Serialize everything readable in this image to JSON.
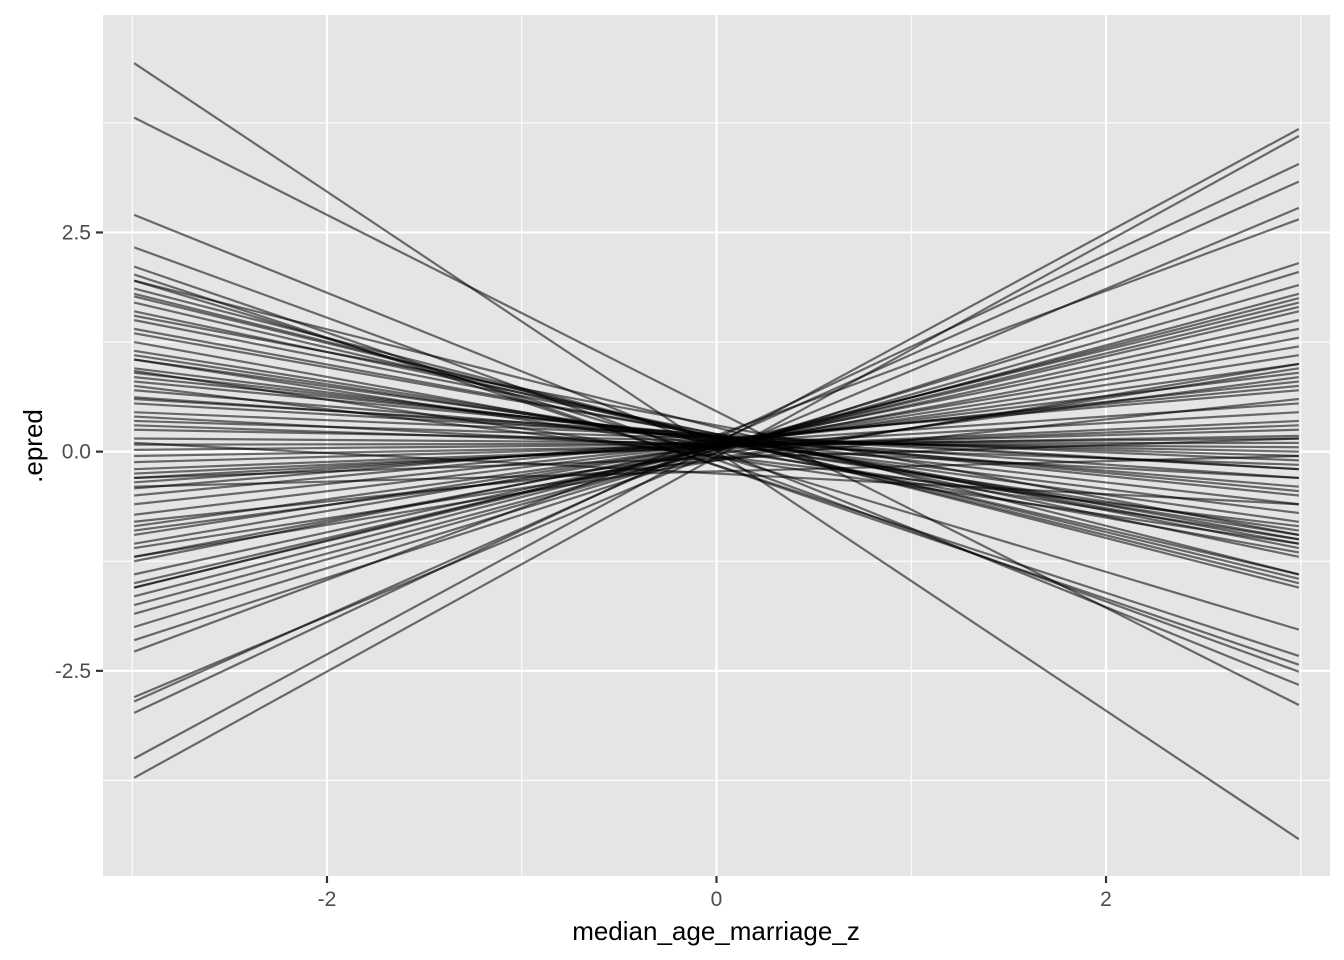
{
  "chart_data": {
    "type": "line",
    "title": "",
    "xlabel": "median_age_marriage_z",
    "ylabel": ".epred",
    "xlim": [
      -3.15,
      3.15
    ],
    "ylim": [
      -4.84,
      4.98
    ],
    "x_ticks": [
      -2,
      0,
      2
    ],
    "x_tick_labels": [
      "-2",
      "0",
      "2"
    ],
    "y_ticks": [
      -2.5,
      0.0,
      2.5
    ],
    "y_tick_labels": [
      "-2.5",
      "0.0",
      "2.5"
    ],
    "grid": true,
    "legend": "none",
    "line_color": "#000000",
    "line_alpha": 0.55,
    "panel_background": "#e5e5e5",
    "grid_color": "#ffffff",
    "x_range": [
      -2.99,
      2.99
    ],
    "series": [
      {
        "y_start": 4.43,
        "y_end": -4.42
      },
      {
        "y_start": 3.81,
        "y_end": -2.89
      },
      {
        "y_start": 2.7,
        "y_end": -2.66
      },
      {
        "y_start": 2.33,
        "y_end": -2.51
      },
      {
        "y_start": 2.11,
        "y_end": -2.43
      },
      {
        "y_start": 2.02,
        "y_end": -2.33
      },
      {
        "y_start": 1.95,
        "y_end": -2.03
      },
      {
        "y_start": 1.86,
        "y_end": -1.55
      },
      {
        "y_start": 1.8,
        "y_end": -1.5
      },
      {
        "y_start": 1.77,
        "y_end": -1.45
      },
      {
        "y_start": 1.7,
        "y_end": -1.4
      },
      {
        "y_start": 1.6,
        "y_end": -1.2
      },
      {
        "y_start": 1.5,
        "y_end": -1.1
      },
      {
        "y_start": 1.4,
        "y_end": -1.05
      },
      {
        "y_start": 1.35,
        "y_end": -1.0
      },
      {
        "y_start": 1.15,
        "y_end": -0.95
      },
      {
        "y_start": 1.1,
        "y_end": -0.9
      },
      {
        "y_start": 1.05,
        "y_end": -0.8
      },
      {
        "y_start": 0.95,
        "y_end": -0.7
      },
      {
        "y_start": 0.9,
        "y_end": -0.6
      },
      {
        "y_start": 0.85,
        "y_end": -0.5
      },
      {
        "y_start": 0.8,
        "y_end": -0.45
      },
      {
        "y_start": 0.7,
        "y_end": -0.4
      },
      {
        "y_start": 0.62,
        "y_end": -0.3
      },
      {
        "y_start": 0.55,
        "y_end": -0.2
      },
      {
        "y_start": 0.45,
        "y_end": -0.1
      },
      {
        "y_start": 0.35,
        "y_end": -0.05
      },
      {
        "y_start": 0.25,
        "y_end": 0.0
      },
      {
        "y_start": 0.15,
        "y_end": 0.05
      },
      {
        "y_start": 0.08,
        "y_end": 0.1
      },
      {
        "y_start": 0.02,
        "y_end": 0.15
      },
      {
        "y_start": -0.05,
        "y_end": 0.18
      },
      {
        "y_start": -0.12,
        "y_end": 0.25
      },
      {
        "y_start": -0.25,
        "y_end": 0.35
      },
      {
        "y_start": -0.3,
        "y_end": 0.45
      },
      {
        "y_start": -0.35,
        "y_end": 0.55
      },
      {
        "y_start": -0.42,
        "y_end": 0.7
      },
      {
        "y_start": -0.5,
        "y_end": 0.75
      },
      {
        "y_start": -0.6,
        "y_end": 0.8
      },
      {
        "y_start": -0.72,
        "y_end": 0.9
      },
      {
        "y_start": -0.85,
        "y_end": 1.0
      },
      {
        "y_start": -0.95,
        "y_end": 1.1
      },
      {
        "y_start": -1.05,
        "y_end": 1.2
      },
      {
        "y_start": -1.2,
        "y_end": 1.3
      },
      {
        "y_start": -1.25,
        "y_end": 1.4
      },
      {
        "y_start": -1.4,
        "y_end": 1.5
      },
      {
        "y_start": -1.5,
        "y_end": 1.6
      },
      {
        "y_start": -1.55,
        "y_end": 1.7
      },
      {
        "y_start": -1.65,
        "y_end": 1.75
      },
      {
        "y_start": -1.75,
        "y_end": 1.8
      },
      {
        "y_start": -1.85,
        "y_end": 1.9
      },
      {
        "y_start": -2.0,
        "y_end": 2.05
      },
      {
        "y_start": -2.15,
        "y_end": 2.15
      },
      {
        "y_start": -2.28,
        "y_end": 2.65
      },
      {
        "y_start": -2.8,
        "y_end": 2.78
      },
      {
        "y_start": -2.85,
        "y_end": 3.08
      },
      {
        "y_start": -2.98,
        "y_end": 3.28
      },
      {
        "y_start": -3.5,
        "y_end": 3.68
      },
      {
        "y_start": -3.72,
        "y_end": 3.6
      },
      {
        "y_start": 1.95,
        "y_end": -1.4
      },
      {
        "y_start": 1.55,
        "y_end": -0.95
      },
      {
        "y_start": 0.92,
        "y_end": -1.05
      },
      {
        "y_start": 0.6,
        "y_end": -0.2
      },
      {
        "y_start": 0.4,
        "y_end": -0.3
      },
      {
        "y_start": -0.3,
        "y_end": 0.15
      },
      {
        "y_start": -0.8,
        "y_end": 0.6
      },
      {
        "y_start": -1.2,
        "y_end": 1.0
      },
      {
        "y_start": -0.4,
        "y_end": -0.05
      },
      {
        "y_start": 0.1,
        "y_end": -0.6
      },
      {
        "y_start": -1.55,
        "y_end": 1.65
      },
      {
        "y_start": 1.05,
        "y_end": -1.0
      },
      {
        "y_start": -0.9,
        "y_end": 0.85
      },
      {
        "y_start": 0.75,
        "y_end": -0.85
      },
      {
        "y_start": -1.1,
        "y_end": 0.95
      },
      {
        "y_start": 1.25,
        "y_end": -1.15
      },
      {
        "y_start": -0.2,
        "y_end": 0.3
      },
      {
        "y_start": 0.3,
        "y_end": -0.15
      }
    ]
  }
}
